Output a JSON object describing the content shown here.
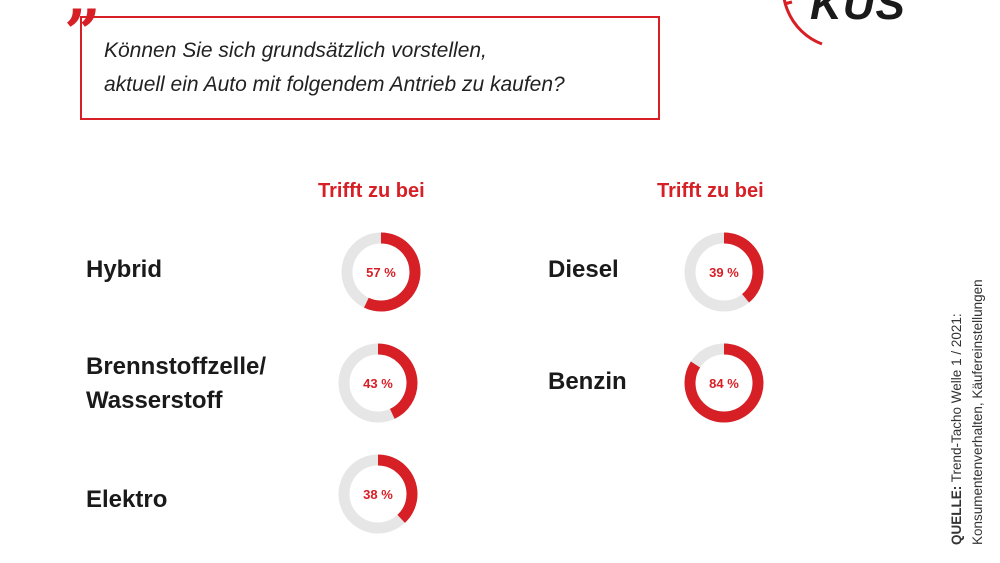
{
  "question": {
    "line1": "Können Sie sich grundsätzlich vorstellen,",
    "line2": "aktuell ein Auto mit folgendem Antrieb zu kaufen?"
  },
  "logo": "KÜS",
  "source": {
    "prefix": "QUELLE:",
    "line1": "Trend-Tacho Welle 1 / 2021:",
    "line2": "Konsumentenverhalten, Käufereinstellungen"
  },
  "colors": {
    "accent": "#d71f26",
    "track": "#e6e6e6",
    "text": "#1a1a1a"
  },
  "chart_data": {
    "type": "pie",
    "unit": "%",
    "columns": [
      {
        "header": "Trifft zu bei",
        "items": [
          {
            "label_lines": [
              "Hybrid"
            ],
            "value": 57,
            "display": "57 %"
          },
          {
            "label_lines": [
              "Brennstoffzelle/",
              "Wasserstoff"
            ],
            "value": 43,
            "display": "43 %"
          },
          {
            "label_lines": [
              "Elektro"
            ],
            "value": 38,
            "display": "38 %"
          }
        ]
      },
      {
        "header": "Trifft zu bei",
        "items": [
          {
            "label_lines": [
              "Diesel"
            ],
            "value": 39,
            "display": "39 %"
          },
          {
            "label_lines": [
              "Benzin"
            ],
            "value": 84,
            "display": "84 %"
          }
        ]
      }
    ]
  }
}
